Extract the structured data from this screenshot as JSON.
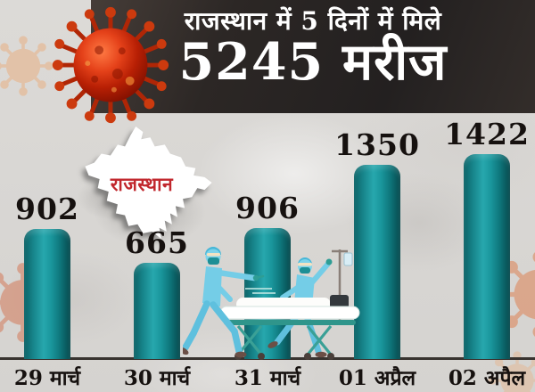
{
  "header": {
    "line1": "राजस्थान में 5 दिनों में मिले",
    "line2": "5245 मरीज"
  },
  "map": {
    "label": "राजस्थान"
  },
  "illustrations": {
    "coronavirus": "coronavirus-icon",
    "map": "rajasthan-map",
    "medics": "medics-pushing-stretcher"
  },
  "chart_data": {
    "type": "bar",
    "title": "राजस्थान में 5 दिनों में मिले 5245 मरीज",
    "categories": [
      "29 मार्च",
      "30 मार्च",
      "31 मार्च",
      "01 अप्रैल",
      "02 अपैल"
    ],
    "values": [
      902,
      665,
      906,
      1350,
      1422
    ],
    "total": 5245,
    "xlabel": "",
    "ylabel": "",
    "ylim": [
      0,
      1500
    ],
    "grid": false,
    "legend": "none",
    "bar_color": "#17858b",
    "value_label_color": "#16110f"
  },
  "colors": {
    "header_bg": "#2c2725",
    "bar_teal": "#17858b",
    "accent_red": "#c1272d",
    "background_gray": "#d9d7d4",
    "text_dark": "#16110f",
    "virus_red": "#c22807",
    "medic_blue": "#74cde7"
  }
}
